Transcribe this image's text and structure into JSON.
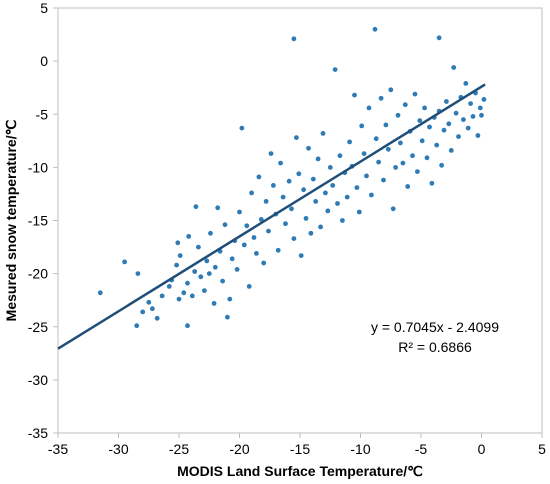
{
  "chart_data": {
    "type": "scatter",
    "title": "",
    "xlabel": "MODIS Land Surface Temperature/℃",
    "ylabel": "Mesured snow temperature/℃",
    "xlim": [
      -35,
      5
    ],
    "ylim": [
      -35,
      5
    ],
    "x_ticks": [
      -35,
      -30,
      -25,
      -20,
      -15,
      -10,
      -5,
      0,
      5
    ],
    "y_ticks": [
      -35,
      -30,
      -25,
      -20,
      -15,
      -10,
      -5,
      0,
      5
    ],
    "grid": false,
    "legend": "none",
    "point_color": "#2e7bb5",
    "trend_color": "#1f4e79",
    "trendline": {
      "slope": 0.7045,
      "intercept": -2.4099,
      "x_range": [
        -35,
        0.3
      ]
    },
    "annotation": {
      "equation": "y = 0.7045x - 2.4099",
      "r_squared": "R² = 0.6866"
    },
    "series": [
      {
        "points": [
          [
            -31.5,
            -21.8
          ],
          [
            -29.5,
            -18.9
          ],
          [
            -28.4,
            -20.0
          ],
          [
            -28.5,
            -24.9
          ],
          [
            -28.0,
            -23.6
          ],
          [
            -27.5,
            -22.7
          ],
          [
            -27.2,
            -23.3
          ],
          [
            -26.8,
            -24.2
          ],
          [
            -26.4,
            -22.1
          ],
          [
            -24.3,
            -24.9
          ],
          [
            -25.8,
            -21.2
          ],
          [
            -25.6,
            -20.6
          ],
          [
            -25.2,
            -19.2
          ],
          [
            -25.0,
            -22.4
          ],
          [
            -25.1,
            -17.1
          ],
          [
            -24.6,
            -21.8
          ],
          [
            -24.9,
            -18.3
          ],
          [
            -24.3,
            -20.9
          ],
          [
            -24.2,
            -16.5
          ],
          [
            -23.9,
            -22.1
          ],
          [
            -23.7,
            -19.8
          ],
          [
            -23.6,
            -13.7
          ],
          [
            -23.4,
            -17.5
          ],
          [
            -23.2,
            -20.3
          ],
          [
            -22.9,
            -21.6
          ],
          [
            -22.7,
            -18.8
          ],
          [
            -22.5,
            -20.0
          ],
          [
            -22.4,
            -16.2
          ],
          [
            -22.1,
            -22.8
          ],
          [
            -22.0,
            -19.4
          ],
          [
            -21.8,
            -13.8
          ],
          [
            -21.6,
            -17.9
          ],
          [
            -21.4,
            -20.7
          ],
          [
            -21.2,
            -15.4
          ],
          [
            -21.0,
            -24.1
          ],
          [
            -20.8,
            -22.4
          ],
          [
            -20.6,
            -18.6
          ],
          [
            -20.4,
            -16.9
          ],
          [
            -20.2,
            -19.6
          ],
          [
            -20.0,
            -14.2
          ],
          [
            -19.8,
            -6.3
          ],
          [
            -19.6,
            -17.3
          ],
          [
            -19.4,
            -15.5
          ],
          [
            -19.2,
            -21.2
          ],
          [
            -19.0,
            -12.4
          ],
          [
            -18.8,
            -16.6
          ],
          [
            -18.6,
            -18.1
          ],
          [
            -18.4,
            -10.9
          ],
          [
            -18.2,
            -14.9
          ],
          [
            -18.0,
            -19.0
          ],
          [
            -17.8,
            -13.2
          ],
          [
            -17.6,
            -16.0
          ],
          [
            -17.4,
            -8.7
          ],
          [
            -17.2,
            -11.7
          ],
          [
            -17.0,
            -14.4
          ],
          [
            -16.8,
            -17.8
          ],
          [
            -16.6,
            -9.6
          ],
          [
            -16.4,
            -12.8
          ],
          [
            -16.2,
            -15.3
          ],
          [
            -15.5,
            2.1
          ],
          [
            -15.9,
            -11.3
          ],
          [
            -15.7,
            -13.9
          ],
          [
            -15.5,
            -16.7
          ],
          [
            -15.3,
            -7.2
          ],
          [
            -15.1,
            -10.6
          ],
          [
            -14.9,
            -18.3
          ],
          [
            -14.7,
            -12.1
          ],
          [
            -14.5,
            -14.8
          ],
          [
            -14.3,
            -8.2
          ],
          [
            -14.1,
            -16.2
          ],
          [
            -13.9,
            -11.1
          ],
          [
            -13.7,
            -13.2
          ],
          [
            -13.5,
            -9.2
          ],
          [
            -13.3,
            -15.6
          ],
          [
            -13.1,
            -6.8
          ],
          [
            -12.9,
            -12.4
          ],
          [
            -12.7,
            -14.1
          ],
          [
            -12.5,
            -10.0
          ],
          [
            -12.3,
            -11.7
          ],
          [
            -12.1,
            -0.8
          ],
          [
            -11.9,
            -13.4
          ],
          [
            -11.7,
            -8.9
          ],
          [
            -11.5,
            -15.0
          ],
          [
            -11.3,
            -10.5
          ],
          [
            -11.1,
            -12.8
          ],
          [
            -10.9,
            -7.6
          ],
          [
            -10.7,
            -9.9
          ],
          [
            -10.5,
            -3.2
          ],
          [
            -10.3,
            -11.9
          ],
          [
            -10.1,
            -14.2
          ],
          [
            -9.9,
            -6.1
          ],
          [
            -9.7,
            -8.7
          ],
          [
            -9.5,
            -10.8
          ],
          [
            -9.3,
            -4.4
          ],
          [
            -9.1,
            -12.6
          ],
          [
            -8.8,
            3.0
          ],
          [
            -8.7,
            -7.3
          ],
          [
            -8.5,
            -9.5
          ],
          [
            -8.3,
            -3.5
          ],
          [
            -8.1,
            -11.2
          ],
          [
            -7.9,
            -6.0
          ],
          [
            -7.7,
            -8.3
          ],
          [
            -7.5,
            -2.7
          ],
          [
            -7.3,
            -13.9
          ],
          [
            -7.1,
            -10.0
          ],
          [
            -6.9,
            -5.1
          ],
          [
            -6.7,
            -7.7
          ],
          [
            -6.5,
            -9.6
          ],
          [
            -6.3,
            -4.1
          ],
          [
            -6.1,
            -11.8
          ],
          [
            -5.9,
            -6.6
          ],
          [
            -5.7,
            -8.9
          ],
          [
            -5.5,
            -3.1
          ],
          [
            -5.3,
            -10.4
          ],
          [
            -5.1,
            -5.6
          ],
          [
            -4.9,
            -7.5
          ],
          [
            -4.7,
            -4.4
          ],
          [
            -4.5,
            -9.1
          ],
          [
            -4.3,
            -6.2
          ],
          [
            -3.5,
            2.2
          ],
          [
            -4.1,
            -11.5
          ],
          [
            -3.9,
            -5.3
          ],
          [
            -3.7,
            -7.9
          ],
          [
            -3.5,
            -4.7
          ],
          [
            -3.3,
            -9.8
          ],
          [
            -3.1,
            -6.5
          ],
          [
            -2.9,
            -3.8
          ],
          [
            -2.7,
            -5.9
          ],
          [
            -2.5,
            -8.4
          ],
          [
            -2.3,
            -0.6
          ],
          [
            -2.1,
            -4.9
          ],
          [
            -1.9,
            -7.1
          ],
          [
            -1.7,
            -3.4
          ],
          [
            -1.5,
            -5.5
          ],
          [
            -1.3,
            -2.1
          ],
          [
            -1.1,
            -6.3
          ],
          [
            -0.9,
            -4.0
          ],
          [
            -0.7,
            -5.2
          ],
          [
            -0.5,
            -3.0
          ],
          [
            -0.3,
            -7.0
          ],
          [
            -0.1,
            -4.4
          ],
          [
            0.0,
            -5.1
          ],
          [
            0.2,
            -3.6
          ]
        ]
      }
    ]
  }
}
